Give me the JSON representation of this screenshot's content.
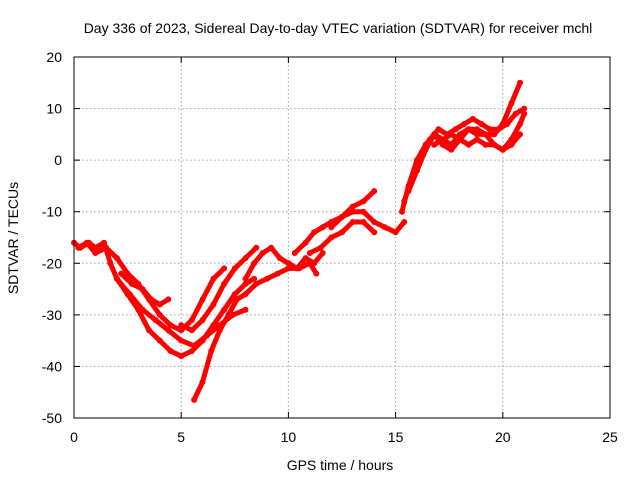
{
  "chart_data": {
    "type": "line",
    "title": "Day 336 of 2023, Sidereal Day-to-day VTEC variation (SDTVAR) for receiver mchl",
    "xlabel": "GPS time / hours",
    "ylabel": "SDTVAR / TECUs",
    "xlim": [
      0,
      25
    ],
    "ylim": [
      -50,
      20
    ],
    "x_ticks": [
      0,
      5,
      10,
      15,
      20,
      25
    ],
    "y_ticks": [
      -50,
      -40,
      -30,
      -20,
      -10,
      0,
      10,
      20
    ],
    "grid": true,
    "legend": "none",
    "color": "#ff0000",
    "series": [
      {
        "x": [
          0,
          0.3,
          0.7,
          1.0,
          1.4,
          1.7,
          2.0,
          2.5,
          3.0,
          3.5,
          4.0,
          4.5,
          5.0,
          5.5,
          6.0,
          6.5,
          7.0,
          7.5,
          8.0,
          8.4
        ],
        "y": [
          -16,
          -17,
          -16,
          -17,
          -16,
          -20,
          -23,
          -26,
          -29,
          -33,
          -35,
          -37,
          -38,
          -37,
          -35,
          -32,
          -29,
          -26,
          -24,
          -23
        ]
      },
      {
        "x": [
          0.2,
          0.6,
          1.0,
          1.5,
          2.0,
          2.5,
          3.0,
          3.5,
          4.0,
          4.5,
          5.0,
          5.5,
          6.0,
          6.5,
          7.0
        ],
        "y": [
          -17,
          -16,
          -18,
          -17,
          -19,
          -22,
          -24,
          -27,
          -30,
          -32,
          -33,
          -31,
          -27,
          -23,
          -21
        ]
      },
      {
        "x": [
          2.2,
          2.7,
          3.2,
          3.6,
          4.0,
          4.4
        ],
        "y": [
          -22,
          -24,
          -25,
          -27,
          -28,
          -27
        ]
      },
      {
        "x": [
          2.0,
          2.6,
          3.2,
          3.8,
          4.4,
          5.0,
          5.6,
          6.2,
          6.8,
          7.4,
          8.0
        ],
        "y": [
          -23,
          -26,
          -29,
          -31,
          -33,
          -35,
          -36,
          -34,
          -32,
          -30,
          -29
        ]
      },
      {
        "x": [
          5.6,
          6.0,
          6.4,
          6.8,
          7.2,
          7.6,
          8.0,
          8.5,
          9.0,
          9.5,
          10.0,
          10.5,
          11.0,
          11.3
        ],
        "y": [
          -46.5,
          -43,
          -37,
          -33,
          -30,
          -27,
          -26,
          -24,
          -23,
          -22,
          -21,
          -21,
          -20,
          -22
        ]
      },
      {
        "x": [
          5.0,
          5.5,
          6.0,
          6.5,
          7.0,
          7.5,
          8.0,
          8.5
        ],
        "y": [
          -32,
          -33,
          -31,
          -28,
          -24,
          -21,
          -19,
          -17
        ]
      },
      {
        "x": [
          8.0,
          8.4,
          8.8,
          9.2,
          9.6,
          10.0,
          10.4,
          10.8,
          11.2,
          11.6
        ],
        "y": [
          -23,
          -20,
          -18,
          -17,
          -19,
          -20,
          -21,
          -19,
          -20,
          -18
        ]
      },
      {
        "x": [
          10.3,
          10.8,
          11.2,
          11.6,
          12.0,
          12.5,
          13.0,
          13.5,
          14.0,
          14.5,
          15.0,
          15.4
        ],
        "y": [
          -18,
          -16,
          -14,
          -13,
          -12,
          -11,
          -10,
          -10,
          -12,
          -13,
          -14,
          -12
        ]
      },
      {
        "x": [
          11.0,
          11.5,
          12.0,
          12.5,
          13.0,
          13.5,
          14.0
        ],
        "y": [
          -18,
          -17,
          -15,
          -14,
          -12,
          -12,
          -14
        ]
      },
      {
        "x": [
          12.0,
          12.5,
          13.0,
          13.5,
          14.0
        ],
        "y": [
          -13,
          -11,
          -9,
          -8,
          -6
        ]
      },
      {
        "x": [
          15.3,
          15.6,
          16.0,
          16.4,
          16.8,
          17.2,
          17.6,
          18.0,
          18.4,
          18.8,
          19.2,
          19.6,
          20.0,
          20.4,
          20.8
        ],
        "y": [
          -10,
          -5,
          0,
          3,
          5,
          4,
          5,
          4,
          6,
          6,
          5,
          5,
          7,
          11,
          15
        ]
      },
      {
        "x": [
          15.4,
          15.8,
          16.2,
          16.6,
          17.0,
          17.4,
          17.8,
          18.2,
          18.6,
          19.0,
          19.4,
          19.8,
          20.2,
          20.6,
          21.0
        ],
        "y": [
          -8,
          -3,
          1,
          4,
          6,
          5,
          6,
          7,
          8,
          7,
          6,
          6,
          7,
          9,
          10
        ]
      },
      {
        "x": [
          15.6,
          16.0,
          16.4,
          16.8,
          17.2,
          17.6,
          18.0,
          18.4,
          18.8,
          19.2,
          19.6,
          20.0,
          20.4,
          20.8
        ],
        "y": [
          -6,
          -2,
          2,
          5,
          3,
          2,
          4,
          3,
          4,
          3,
          3,
          2,
          3,
          5
        ]
      },
      {
        "x": [
          16.8,
          17.2,
          17.6,
          18.0,
          18.4,
          18.8,
          19.2,
          19.6,
          20.0,
          20.4,
          20.8,
          21.0
        ],
        "y": [
          3,
          4,
          3,
          5,
          6,
          5,
          5,
          3,
          2,
          4,
          7,
          9
        ]
      }
    ]
  }
}
